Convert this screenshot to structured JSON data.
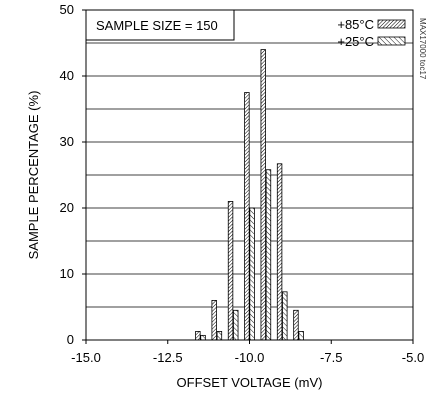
{
  "chart_data": {
    "type": "bar",
    "note": "SAMPLE SIZE = 150",
    "watermark": "MAX17000 toc17",
    "xlabel": "OFFSET VOLTAGE (mV)",
    "ylabel": "SAMPLE PERCENTAGE (%)",
    "xlim": [
      -15.0,
      -5.0
    ],
    "ylim": [
      0,
      50
    ],
    "xticks": [
      "-15.0",
      "-12.5",
      "-10.0",
      "-7.5",
      "-5.0"
    ],
    "yticks": [
      "0",
      "10",
      "20",
      "30",
      "40",
      "50"
    ],
    "grid": "horizontal",
    "legend_position": "top-right",
    "categories": [
      -11.5,
      -11.0,
      -10.5,
      -10.0,
      -9.5,
      -9.0,
      -8.5
    ],
    "series": [
      {
        "name": "+85°C",
        "pattern": "hatch-dense",
        "values": [
          1.3,
          6.0,
          21.0,
          37.5,
          44.0,
          26.7,
          4.5
        ]
      },
      {
        "name": "+25°C",
        "pattern": "hatch-sparse",
        "values": [
          0.7,
          1.3,
          4.5,
          20.0,
          25.8,
          7.3,
          1.3
        ]
      }
    ]
  }
}
